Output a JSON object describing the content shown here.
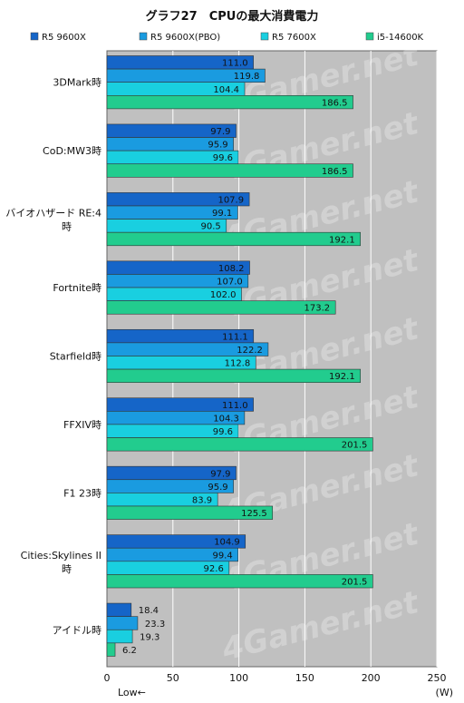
{
  "chart_data": {
    "type": "bar",
    "orientation": "horizontal",
    "title": "グラフ27　CPUの最大消費電力",
    "categories": [
      "3DMark時",
      "CoD:MW3時",
      "バイオハザード RE:4時",
      "Fortnite時",
      "Starfield時",
      "FFXIV時",
      "F1 23時",
      "Cities:Skylines II時",
      "アイドル時"
    ],
    "category_lines": [
      [
        "3DMark時"
      ],
      [
        "CoD:MW3時"
      ],
      [
        "バイオハザード RE:4",
        "時"
      ],
      [
        "Fortnite時"
      ],
      [
        "Starfield時"
      ],
      [
        "FFXIV時"
      ],
      [
        "F1 23時"
      ],
      [
        "Cities:Skylines II",
        "時"
      ],
      [
        "アイドル時"
      ]
    ],
    "series": [
      {
        "name": "R5 9600X",
        "color": "#1565c8",
        "values": [
          111.0,
          97.9,
          107.9,
          108.2,
          111.1,
          111.0,
          97.9,
          104.9,
          18.4
        ]
      },
      {
        "name": "R5 9600X(PBO)",
        "color": "#1a9be0",
        "values": [
          119.8,
          95.9,
          99.1,
          107.0,
          122.2,
          104.3,
          95.9,
          99.4,
          23.3
        ]
      },
      {
        "name": "R5 7600X",
        "color": "#19cfe0",
        "values": [
          104.4,
          99.6,
          90.5,
          102.0,
          112.8,
          99.6,
          83.9,
          92.6,
          19.3
        ]
      },
      {
        "name": "i5-14600K",
        "color": "#22cc8e",
        "values": [
          186.5,
          186.5,
          192.1,
          173.2,
          192.1,
          201.5,
          125.5,
          201.5,
          6.2
        ]
      }
    ],
    "xlim": [
      0,
      250
    ],
    "xticks": [
      0,
      50,
      100,
      150,
      200,
      250
    ],
    "x_unit": "(W)",
    "x_note": "Low←",
    "watermark": "4Gamer.net",
    "grid": true,
    "legend_position": "top",
    "plot_background": "#c0c0c0",
    "grid_color": "#ffffff"
  }
}
